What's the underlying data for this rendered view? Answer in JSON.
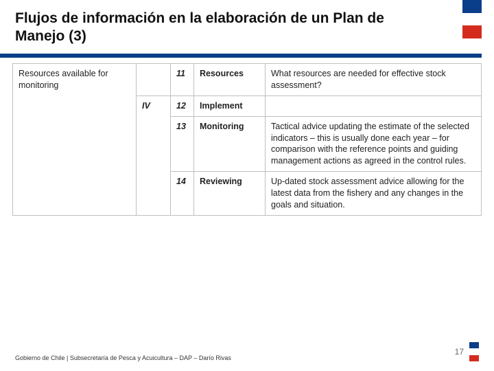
{
  "title": "Flujos de información en la elaboración de un Plan de Manejo (3)",
  "flag_colors": {
    "blue": "#0b3e8a",
    "white": "#ffffff",
    "red": "#d52b1e"
  },
  "underline_color": "#0b3e8a",
  "table": {
    "border_color": "#bfbfbf",
    "rows": [
      {
        "left": "Resources available for monitoring",
        "group": "",
        "num": "11",
        "label": "Resources",
        "desc": "What resources are needed for effective stock assessment?"
      },
      {
        "left": "",
        "group": "IV",
        "num": "12",
        "label": "Implement",
        "desc": ""
      },
      {
        "left": "",
        "group": "",
        "num": "13",
        "label": "Monitoring",
        "desc": "Tactical advice updating the estimate of the selected indicators – this is usually done each year – for comparison with the reference points and guiding management actions as agreed in the control rules."
      },
      {
        "left": "",
        "group": "",
        "num": "14",
        "label": "Reviewing",
        "desc": "Up-dated stock assessment advice allowing for the latest data from the fishery and any changes in the goals and situation."
      }
    ]
  },
  "footer": {
    "text": "Gobierno de Chile | Subsecretaría de Pesca y Acuicultura – DAP – Darío Rivas",
    "page": "17"
  }
}
